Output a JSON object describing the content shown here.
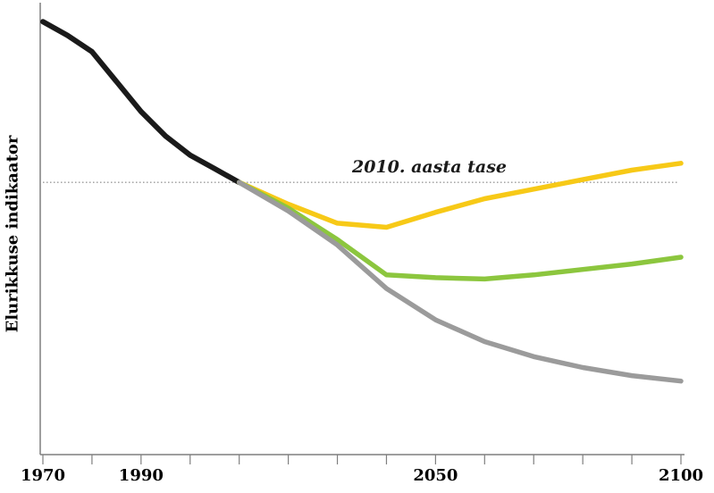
{
  "chart_data": {
    "type": "line",
    "title": "",
    "xlabel": "",
    "ylabel": "Elurikkuse indikaator",
    "legend": "none",
    "grid": "off",
    "x_axis": {
      "range": [
        1970,
        2100
      ],
      "tick_step": 10,
      "labeled_ticks": [
        1970,
        1990,
        2050,
        2100
      ]
    },
    "y_axis": {
      "range": [
        0,
        1.66
      ],
      "ticks": []
    },
    "reference_line": {
      "label": "2010. aasta tase",
      "value": 1.0,
      "style": "dotted",
      "color": "#999999"
    },
    "axis_color": "#7f7f7f",
    "series": [
      {
        "name": "historical-black",
        "color": "#1a1a1a",
        "width": 6,
        "x": [
          1970,
          1975,
          1980,
          1985,
          1990,
          1995,
          2000,
          2005,
          2010
        ],
        "values": [
          1.59,
          1.54,
          1.48,
          1.37,
          1.26,
          1.17,
          1.1,
          1.05,
          1.0
        ]
      },
      {
        "name": "scenario-yellow-recovery",
        "color": "#f7c917",
        "width": 5.5,
        "x": [
          2010,
          2020,
          2030,
          2040,
          2050,
          2060,
          2070,
          2080,
          2090,
          2100
        ],
        "values": [
          1.0,
          0.92,
          0.85,
          0.835,
          0.89,
          0.94,
          0.975,
          1.01,
          1.045,
          1.07
        ]
      },
      {
        "name": "scenario-green-stabilisation",
        "color": "#8cc63e",
        "width": 5.5,
        "x": [
          2010,
          2020,
          2030,
          2040,
          2050,
          2060,
          2070,
          2080,
          2090,
          2100
        ],
        "values": [
          1.0,
          0.905,
          0.79,
          0.66,
          0.65,
          0.645,
          0.66,
          0.68,
          0.7,
          0.725
        ]
      },
      {
        "name": "scenario-gray-decline",
        "color": "#9b9b9b",
        "width": 5.5,
        "x": [
          2010,
          2020,
          2030,
          2040,
          2050,
          2060,
          2070,
          2080,
          2090,
          2100
        ],
        "values": [
          1.0,
          0.895,
          0.77,
          0.61,
          0.495,
          0.415,
          0.36,
          0.32,
          0.29,
          0.27
        ]
      }
    ]
  }
}
